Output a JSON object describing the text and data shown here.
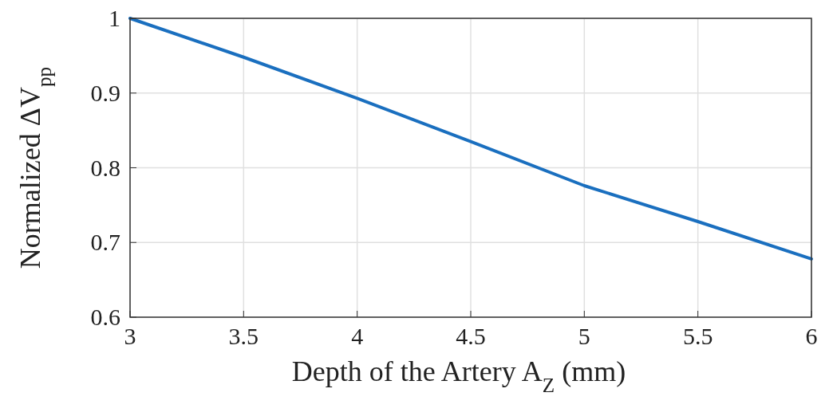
{
  "chart_data": {
    "type": "line",
    "xlabel": "Depth of the Artery A$_{Z}$ (mm)",
    "ylabel": "Normalized ΔV$_{pp}$",
    "x": [
      3,
      3.5,
      4,
      4.5,
      5,
      5.5,
      6
    ],
    "series": [
      {
        "color": "#1a6fbf",
        "values": [
          1,
          0.948,
          0.893,
          0.835,
          0.776,
          0.728,
          0.678
        ]
      }
    ],
    "xlim": [
      3,
      6
    ],
    "ylim": [
      0.6,
      1
    ],
    "xticks": [
      3,
      3.5,
      4,
      4.5,
      5,
      5.5,
      6
    ],
    "yticks": [
      0.6,
      0.7,
      0.8,
      0.9,
      1
    ],
    "grid": true,
    "line_style": "solid",
    "marker": "none"
  }
}
